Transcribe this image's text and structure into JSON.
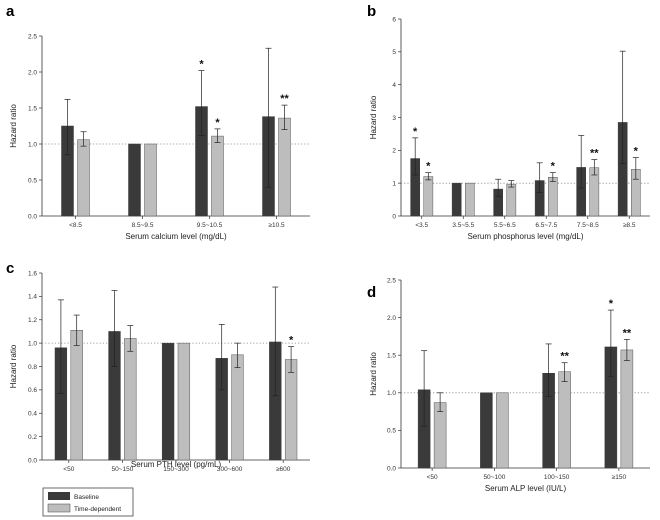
{
  "legend": {
    "baseline": {
      "label": "Baseline",
      "color": "#3a3a3a"
    },
    "time_dependent": {
      "label": "Time-dependent",
      "color": "#bdbdbd"
    }
  },
  "chart_data": [
    {
      "type": "bar",
      "panel": "a",
      "xlabel": "Serum calcium level (mg/dL)",
      "ylabel": "Hazard ratio",
      "ylim": [
        0,
        2.5
      ],
      "yticks": [
        "0.0",
        "0.5",
        "1.0",
        "1.5",
        "2.0",
        "2.5"
      ],
      "reference_line": 1.0,
      "categories": [
        "<8.5",
        "8.5~9.5",
        "9.5~10.5",
        "≥10.5"
      ],
      "series": [
        {
          "name": "Baseline",
          "values": [
            1.25,
            1.0,
            1.52,
            1.38
          ],
          "lower": [
            0.85,
            1.0,
            1.12,
            0.4
          ],
          "upper": [
            1.62,
            1.0,
            2.02,
            2.33
          ],
          "significance": [
            "",
            "",
            "*",
            ""
          ]
        },
        {
          "name": "Time-dependent",
          "values": [
            1.06,
            1.0,
            1.11,
            1.36
          ],
          "lower": [
            0.97,
            1.0,
            1.02,
            1.2
          ],
          "upper": [
            1.17,
            1.0,
            1.21,
            1.54
          ],
          "significance": [
            "",
            "",
            "*",
            "**"
          ]
        }
      ]
    },
    {
      "type": "bar",
      "panel": "b",
      "xlabel": "Serum phosphorus level (mg/dL)",
      "ylabel": "Hazard ratio",
      "ylim": [
        0,
        6
      ],
      "yticks": [
        "0",
        "1",
        "2",
        "3",
        "4",
        "5",
        "6"
      ],
      "reference_line": 1.0,
      "categories": [
        "<3.5",
        "3.5~5.5",
        "5.5~6.5",
        "6.5~7.5",
        "7.5~8.5",
        "≥8.5"
      ],
      "series": [
        {
          "name": "Baseline",
          "values": [
            1.75,
            1.0,
            0.82,
            1.08,
            1.48,
            2.85
          ],
          "lower": [
            1.25,
            1.0,
            0.6,
            0.72,
            0.85,
            1.6
          ],
          "upper": [
            2.38,
            1.0,
            1.12,
            1.62,
            2.45,
            5.02
          ],
          "significance": [
            "*",
            "",
            "",
            "",
            "",
            ""
          ]
        },
        {
          "name": "Time-dependent",
          "values": [
            1.2,
            1.0,
            0.97,
            1.18,
            1.47,
            1.42
          ],
          "lower": [
            1.1,
            1.0,
            0.88,
            1.05,
            1.25,
            1.12
          ],
          "upper": [
            1.32,
            1.0,
            1.08,
            1.32,
            1.72,
            1.78
          ],
          "significance": [
            "*",
            "",
            "",
            "*",
            "**",
            "*"
          ]
        }
      ]
    },
    {
      "type": "bar",
      "panel": "c",
      "xlabel": "Serum PTH level (pg/mL)",
      "ylabel": "Hazard ratio",
      "ylim": [
        0,
        1.6
      ],
      "yticks": [
        "0.0",
        "0.2",
        "0.4",
        "0.6",
        "0.8",
        "1.0",
        "1.2",
        "1.4",
        "1.6"
      ],
      "reference_line": 1.0,
      "categories": [
        "<50",
        "50~150",
        "150~300",
        "300~600",
        "≥600"
      ],
      "series": [
        {
          "name": "Baseline",
          "values": [
            0.96,
            1.1,
            1.0,
            0.87,
            1.01
          ],
          "lower": [
            0.57,
            0.8,
            1.0,
            0.6,
            0.55
          ],
          "upper": [
            1.37,
            1.45,
            1.0,
            1.16,
            1.48
          ],
          "significance": [
            "",
            "",
            "",
            "",
            ""
          ]
        },
        {
          "name": "Time-dependent",
          "values": [
            1.11,
            1.04,
            1.0,
            0.9,
            0.86
          ],
          "lower": [
            0.98,
            0.93,
            1.0,
            0.79,
            0.75
          ],
          "upper": [
            1.24,
            1.15,
            1.0,
            1.0,
            0.97
          ],
          "significance": [
            "",
            "",
            "",
            "",
            "*"
          ]
        }
      ]
    },
    {
      "type": "bar",
      "panel": "d",
      "xlabel": "Serum ALP level (IU/L)",
      "ylabel": "Hazard ratio",
      "ylim": [
        0,
        2.5
      ],
      "yticks": [
        "0.0",
        "0.5",
        "1.0",
        "1.5",
        "2.0",
        "2.5"
      ],
      "reference_line": 1.0,
      "categories": [
        "<50",
        "50~100",
        "100~150",
        "≥150"
      ],
      "series": [
        {
          "name": "Baseline",
          "values": [
            1.04,
            1.0,
            1.26,
            1.61
          ],
          "lower": [
            0.55,
            1.0,
            0.95,
            1.22
          ],
          "upper": [
            1.56,
            1.0,
            1.65,
            2.1
          ],
          "significance": [
            "",
            "",
            "",
            "*"
          ]
        },
        {
          "name": "Time-dependent",
          "values": [
            0.87,
            1.0,
            1.28,
            1.57
          ],
          "lower": [
            0.75,
            1.0,
            1.15,
            1.43
          ],
          "upper": [
            1.0,
            1.0,
            1.4,
            1.71
          ],
          "significance": [
            "",
            "",
            "**",
            "**"
          ]
        }
      ]
    }
  ]
}
